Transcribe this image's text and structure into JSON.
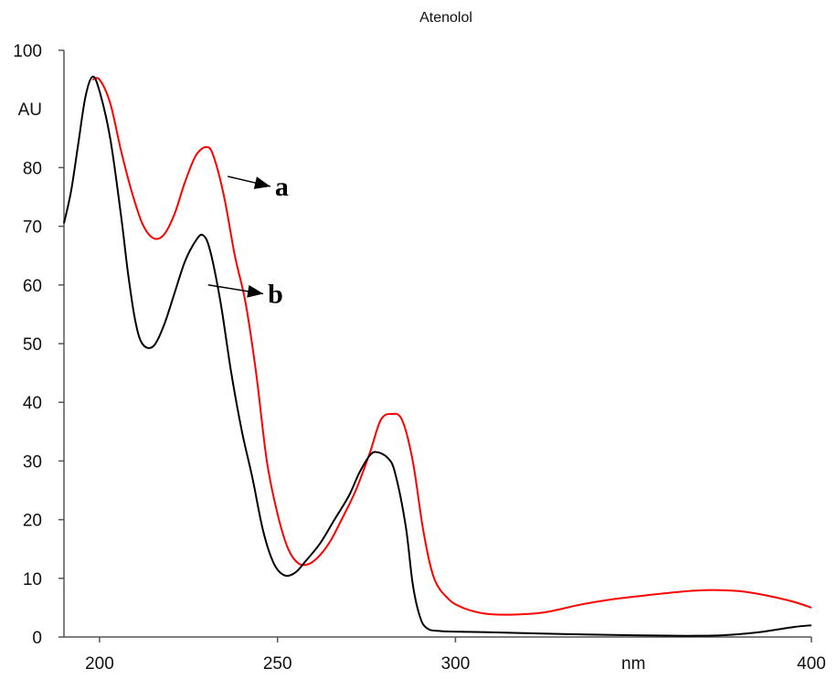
{
  "chart_data": {
    "type": "line",
    "title": "Atenolol",
    "xlabel": "nm",
    "ylabel": "AU",
    "xlim": [
      190,
      400
    ],
    "ylim": [
      0,
      100
    ],
    "x_ticks": [
      200,
      250,
      300,
      400
    ],
    "y_ticks": [
      0,
      10,
      20,
      30,
      40,
      50,
      60,
      70,
      80,
      100
    ],
    "grid": false,
    "legend": "none",
    "series": [
      {
        "name": "a",
        "color": "#ff0000",
        "points": [
          [
            198,
            95
          ],
          [
            200,
            95
          ],
          [
            203,
            91
          ],
          [
            206,
            83
          ],
          [
            209,
            76
          ],
          [
            212,
            70.5
          ],
          [
            215,
            68
          ],
          [
            218,
            68.5
          ],
          [
            221,
            72
          ],
          [
            224,
            77.5
          ],
          [
            227,
            82
          ],
          [
            230,
            83.5
          ],
          [
            232,
            82
          ],
          [
            235,
            75
          ],
          [
            238,
            65
          ],
          [
            241,
            57
          ],
          [
            244,
            45
          ],
          [
            247,
            30
          ],
          [
            250,
            21
          ],
          [
            253,
            15
          ],
          [
            256,
            12.5
          ],
          [
            259,
            12.5
          ],
          [
            262,
            14
          ],
          [
            265,
            16.5
          ],
          [
            268,
            20
          ],
          [
            272,
            25
          ],
          [
            276,
            31.5
          ],
          [
            279,
            37
          ],
          [
            282,
            38
          ],
          [
            285,
            37
          ],
          [
            288,
            30
          ],
          [
            291,
            18
          ],
          [
            294,
            10
          ],
          [
            298,
            6.5
          ],
          [
            302,
            5
          ],
          [
            308,
            4
          ],
          [
            315,
            3.8
          ],
          [
            325,
            4.2
          ],
          [
            335,
            5.5
          ],
          [
            345,
            6.5
          ],
          [
            355,
            7.2
          ],
          [
            365,
            7.8
          ],
          [
            372,
            8
          ],
          [
            380,
            7.8
          ],
          [
            388,
            7
          ],
          [
            395,
            6
          ],
          [
            400,
            5
          ]
        ]
      },
      {
        "name": "b",
        "color": "#000000",
        "points": [
          [
            190,
            70.5
          ],
          [
            192,
            76
          ],
          [
            194,
            84
          ],
          [
            196,
            92
          ],
          [
            198,
            95.5
          ],
          [
            200,
            93
          ],
          [
            203,
            85
          ],
          [
            206,
            72
          ],
          [
            208,
            62
          ],
          [
            210,
            54
          ],
          [
            212,
            50
          ],
          [
            215,
            49.5
          ],
          [
            218,
            53
          ],
          [
            221,
            58.5
          ],
          [
            224,
            64
          ],
          [
            227,
            67.5
          ],
          [
            229,
            68.5
          ],
          [
            231,
            66
          ],
          [
            234,
            57
          ],
          [
            237,
            45
          ],
          [
            240,
            35
          ],
          [
            243,
            27
          ],
          [
            246,
            18
          ],
          [
            249,
            12.5
          ],
          [
            252,
            10.5
          ],
          [
            255,
            11
          ],
          [
            258,
            13
          ],
          [
            262,
            16
          ],
          [
            266,
            20
          ],
          [
            270,
            24
          ],
          [
            273,
            28
          ],
          [
            276,
            31
          ],
          [
            278,
            31.5
          ],
          [
            281,
            30.5
          ],
          [
            283,
            28
          ],
          [
            286,
            19
          ],
          [
            288,
            9
          ],
          [
            290,
            3.5
          ],
          [
            292,
            1.5
          ],
          [
            296,
            1
          ],
          [
            310,
            0.8
          ],
          [
            330,
            0.5
          ],
          [
            350,
            0.3
          ],
          [
            365,
            0.2
          ],
          [
            375,
            0.3
          ],
          [
            385,
            0.8
          ],
          [
            395,
            1.7
          ],
          [
            400,
            2
          ]
        ]
      }
    ],
    "annotations": [
      {
        "label": "a",
        "series": "a",
        "from": [
          236,
          78.5
        ],
        "to": [
          248,
          76.8
        ]
      },
      {
        "label": "b",
        "series": "b",
        "from": [
          230.5,
          60
        ],
        "to": [
          246,
          58.5
        ]
      }
    ]
  }
}
